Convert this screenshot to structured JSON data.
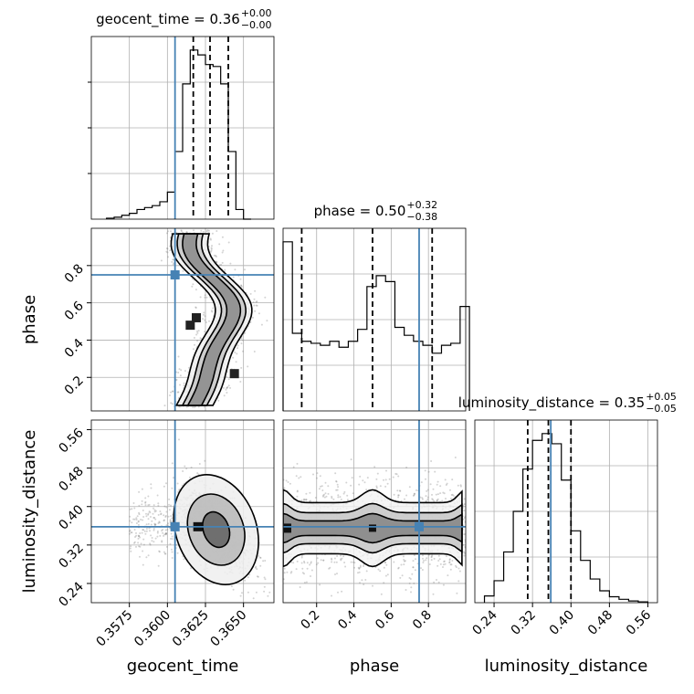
{
  "chart_data": {
    "type": "corner",
    "parameters": [
      "geocent_time",
      "phase",
      "luminosity_distance"
    ],
    "truth": {
      "geocent_time": 0.3605,
      "phase": 0.75,
      "luminosity_distance": 0.358
    },
    "colors": {
      "truth": "#4682b4",
      "hist": "#000000",
      "grid": "#b0b0b0",
      "scatter": "#808080"
    },
    "grid": true,
    "ranges": {
      "geocent_time": [
        0.355,
        0.367
      ],
      "phase": [
        0.02,
        1.0
      ],
      "luminosity_distance": [
        0.2,
        0.58
      ]
    },
    "ticks": {
      "geocent_time": [
        "0.3575",
        "0.3600",
        "0.3625",
        "0.3650"
      ],
      "phase": [
        "0.2",
        "0.4",
        "0.6",
        "0.8"
      ],
      "luminosity_distance": [
        "0.24",
        "0.32",
        "0.40",
        "0.48",
        "0.56"
      ]
    },
    "titles": [
      {
        "param": "geocent_time",
        "median": "0.36",
        "plus": "+0.00",
        "minus": "−0.00"
      },
      {
        "param": "phase",
        "median": "0.50",
        "plus": "+0.32",
        "minus": "−0.38"
      },
      {
        "param": "luminosity_distance",
        "median": "0.35",
        "plus": "+0.05",
        "minus": "−0.05"
      }
    ],
    "quantiles": {
      "geocent_time": [
        0.3617,
        0.3628,
        0.364
      ],
      "phase": [
        0.12,
        0.5,
        0.82
      ],
      "luminosity_distance": [
        0.31,
        0.353,
        0.4
      ]
    },
    "histograms": {
      "geocent_time": {
        "edges": [
          0.356,
          0.3565,
          0.357,
          0.3575,
          0.358,
          0.3585,
          0.359,
          0.3595,
          0.36,
          0.3605,
          0.361,
          0.3615,
          0.362,
          0.3625,
          0.363,
          0.3635,
          0.364,
          0.3645,
          0.365,
          0.3655
        ],
        "counts": [
          1,
          2,
          4,
          6,
          10,
          12,
          14,
          18,
          28,
          70,
          140,
          175,
          170,
          160,
          158,
          140,
          70,
          10,
          0
        ]
      },
      "phase": {
        "edges": [
          0.02,
          0.07,
          0.12,
          0.17,
          0.22,
          0.27,
          0.32,
          0.37,
          0.42,
          0.47,
          0.52,
          0.57,
          0.62,
          0.67,
          0.72,
          0.77,
          0.82,
          0.87,
          0.92,
          0.97,
          1.02
        ],
        "counts": [
          170,
          78,
          70,
          68,
          66,
          70,
          64,
          70,
          82,
          125,
          136,
          130,
          84,
          76,
          70,
          66,
          58,
          66,
          68,
          105
        ]
      },
      "luminosity_distance": {
        "edges": [
          0.22,
          0.24,
          0.26,
          0.28,
          0.3,
          0.32,
          0.34,
          0.36,
          0.38,
          0.4,
          0.42,
          0.44,
          0.46,
          0.48,
          0.5,
          0.52,
          0.54,
          0.56
        ],
        "counts": [
          8,
          26,
          60,
          108,
          158,
          192,
          200,
          188,
          145,
          85,
          50,
          28,
          14,
          7,
          4,
          2,
          1
        ]
      }
    }
  }
}
